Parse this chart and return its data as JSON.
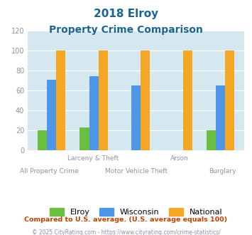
{
  "title_line1": "2018 Elroy",
  "title_line2": "Property Crime Comparison",
  "categories": [
    "All Property Crime",
    "Larceny & Theft",
    "Motor Vehicle Theft",
    "Arson",
    "Burglary"
  ],
  "categories_row1": [
    "",
    "Larceny & Theft",
    "",
    "Arson",
    ""
  ],
  "categories_row2": [
    "All Property Crime",
    "",
    "Motor Vehicle Theft",
    "",
    "Burglary"
  ],
  "elroy": [
    20,
    23,
    0,
    0,
    20
  ],
  "wisconsin": [
    71,
    74,
    65,
    0,
    65
  ],
  "national": [
    100,
    100,
    100,
    100,
    100
  ],
  "elroy_color": "#6abf40",
  "wisconsin_color": "#4d96e8",
  "national_color": "#f5a623",
  "ylim": [
    0,
    120
  ],
  "yticks": [
    0,
    20,
    40,
    60,
    80,
    100,
    120
  ],
  "background_color": "#d6e8ef",
  "legend_labels": [
    "Elroy",
    "Wisconsin",
    "National"
  ],
  "footnote1": "Compared to U.S. average. (U.S. average equals 100)",
  "footnote2": "© 2025 CityRating.com - https://www.cityrating.com/crime-statistics/",
  "title_color": "#1a6496",
  "axis_label_color": "#9090a8",
  "footnote1_color": "#c04000",
  "footnote2_color": "#9090a8",
  "grid_color": "#ffffff",
  "bar_width": 0.22
}
